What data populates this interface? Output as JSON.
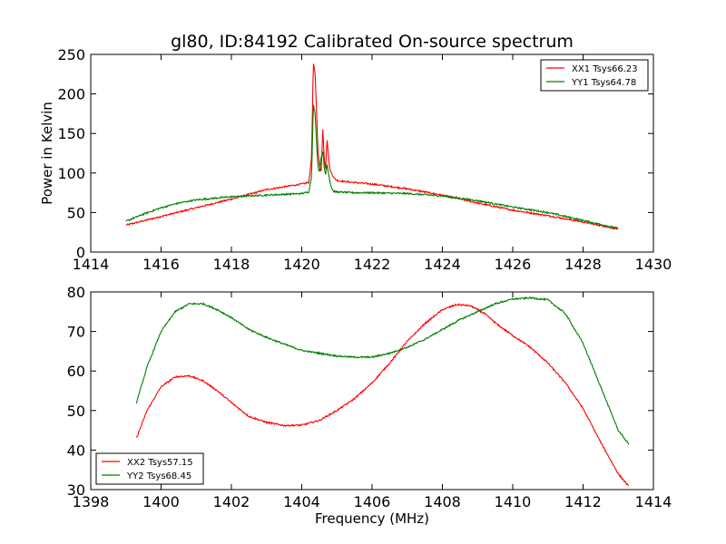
{
  "figure": {
    "title": "gl80, ID:84192 Calibrated On-source spectrum",
    "xlabel": "Frequency (MHz)"
  },
  "chart_data": [
    {
      "type": "line",
      "title": "gl80, ID:84192 Calibrated On-source spectrum",
      "xlabel": "",
      "ylabel": "Power in Kelvin",
      "xlim": [
        1414,
        1430
      ],
      "ylim": [
        0,
        250
      ],
      "xticks": [
        1414,
        1416,
        1418,
        1420,
        1422,
        1424,
        1426,
        1428,
        1430
      ],
      "yticks": [
        0,
        50,
        100,
        150,
        200,
        250
      ],
      "grid": false,
      "legend": "top-right",
      "series": [
        {
          "name": "XX1 Tsys66.23",
          "color": "#ff0000",
          "x": [
            1415.0,
            1416.0,
            1417.0,
            1418.0,
            1419.0,
            1420.0,
            1420.2,
            1420.28,
            1420.33,
            1420.38,
            1420.42,
            1420.46,
            1420.5,
            1420.55,
            1420.6,
            1420.64,
            1420.68,
            1420.72,
            1420.76,
            1420.8,
            1420.84,
            1420.88,
            1420.95,
            1421.05,
            1421.5,
            1422.0,
            1423.0,
            1424.0,
            1425.0,
            1426.0,
            1427.0,
            1428.0,
            1429.0
          ],
          "y": [
            34,
            45,
            56,
            67,
            79,
            86,
            88,
            120,
            240,
            225,
            180,
            130,
            110,
            100,
            155,
            118,
            105,
            145,
            120,
            105,
            100,
            97,
            92,
            90,
            88,
            86,
            80,
            72,
            62,
            53,
            46,
            38,
            29
          ]
        },
        {
          "name": "YY1 Tsys64.78",
          "color": "#008000",
          "x": [
            1415.0,
            1415.5,
            1416.0,
            1416.5,
            1417.0,
            1418.0,
            1419.0,
            1420.0,
            1420.2,
            1420.28,
            1420.33,
            1420.38,
            1420.42,
            1420.46,
            1420.5,
            1420.55,
            1420.6,
            1420.64,
            1420.68,
            1420.72,
            1420.76,
            1420.8,
            1420.84,
            1420.9,
            1421.0,
            1421.5,
            1422.0,
            1423.0,
            1424.0,
            1425.0,
            1426.0,
            1427.0,
            1428.0,
            1429.0
          ],
          "y": [
            39,
            48,
            56,
            62,
            66,
            70,
            72,
            74,
            76,
            95,
            187,
            175,
            140,
            110,
            100,
            120,
            128,
            105,
            98,
            112,
            100,
            90,
            82,
            77,
            76,
            75,
            75,
            74,
            71,
            65,
            57,
            50,
            40,
            30
          ]
        }
      ]
    },
    {
      "type": "line",
      "title": "",
      "xlabel": "Frequency (MHz)",
      "ylabel": "",
      "xlim": [
        1398,
        1414
      ],
      "ylim": [
        30,
        80
      ],
      "xticks": [
        1398,
        1400,
        1402,
        1404,
        1406,
        1408,
        1410,
        1412,
        1414
      ],
      "yticks": [
        30,
        40,
        50,
        60,
        70,
        80
      ],
      "grid": false,
      "legend": "bottom-left",
      "series": [
        {
          "name": "XX2 Tsys57.15",
          "color": "#ff0000",
          "x": [
            1399.3,
            1399.6,
            1400.0,
            1400.4,
            1400.8,
            1401.2,
            1401.6,
            1402.0,
            1402.5,
            1403.0,
            1403.5,
            1404.0,
            1404.5,
            1405.0,
            1405.5,
            1406.0,
            1406.5,
            1407.0,
            1407.5,
            1408.0,
            1408.4,
            1408.8,
            1409.2,
            1409.6,
            1410.0,
            1410.5,
            1411.0,
            1411.5,
            1412.0,
            1412.5,
            1413.0,
            1413.3
          ],
          "y": [
            43,
            50,
            56,
            58.5,
            58.8,
            57.5,
            55,
            52,
            48.5,
            47,
            46.2,
            46.3,
            47.5,
            50,
            53,
            57,
            62,
            67.5,
            72,
            75.5,
            76.8,
            76.5,
            74.5,
            71.5,
            69,
            66,
            62,
            57,
            50.5,
            42,
            34,
            30.8
          ]
        },
        {
          "name": "YY2 Tsys68.45",
          "color": "#008000",
          "x": [
            1399.3,
            1399.6,
            1400.0,
            1400.4,
            1400.8,
            1401.2,
            1401.6,
            1402.0,
            1402.5,
            1403.0,
            1403.5,
            1404.0,
            1404.5,
            1405.0,
            1405.5,
            1406.0,
            1406.5,
            1407.0,
            1407.5,
            1408.0,
            1408.5,
            1409.0,
            1409.5,
            1410.0,
            1410.5,
            1411.0,
            1411.5,
            1412.0,
            1412.5,
            1413.0,
            1413.3
          ],
          "y": [
            52,
            61,
            70,
            75,
            77,
            77,
            75.5,
            73.5,
            70.5,
            68.5,
            66.8,
            65.2,
            64.5,
            63.8,
            63.5,
            63.5,
            64.5,
            66,
            68,
            70.5,
            73,
            75,
            77,
            78.2,
            78.5,
            78,
            74.5,
            67,
            56,
            45,
            41.5
          ]
        }
      ]
    }
  ]
}
